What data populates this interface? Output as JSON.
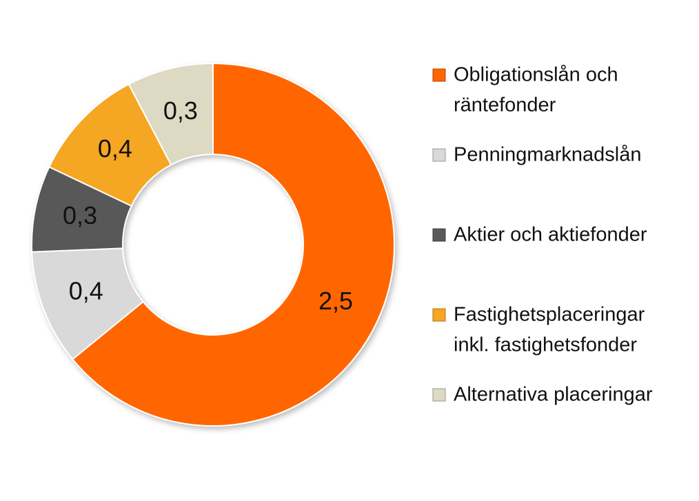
{
  "chart_data": {
    "type": "pie",
    "variant": "donut",
    "title": "",
    "series": [
      {
        "name": "Obligationslån och räntefonder",
        "label": "2,5",
        "value": 2.5,
        "color": "#ff6600"
      },
      {
        "name": "Penningmarknadslån",
        "label": "0,4",
        "value": 0.4,
        "color": "#d9d9d9"
      },
      {
        "name": "Aktier och aktiefonder",
        "label": "0,3",
        "value": 0.3,
        "color": "#595959"
      },
      {
        "name": "Fastighetsplaceringar inkl. fastighetsfonder",
        "label": "0,4",
        "value": 0.4,
        "color": "#f5a623"
      },
      {
        "name": "Alternativa placeringar",
        "label": "0,3",
        "value": 0.3,
        "color": "#ddd9c3"
      }
    ],
    "legend": {
      "position": "right",
      "entries": [
        [
          "Obligationslån och",
          "räntefonder"
        ],
        [
          "Penningmarknadslån"
        ],
        [
          "Aktier och aktiefonder"
        ],
        [
          "Fastighetsplaceringar",
          "inkl. fastighetsfonder"
        ],
        [
          "Alternativa placeringar"
        ]
      ]
    }
  }
}
